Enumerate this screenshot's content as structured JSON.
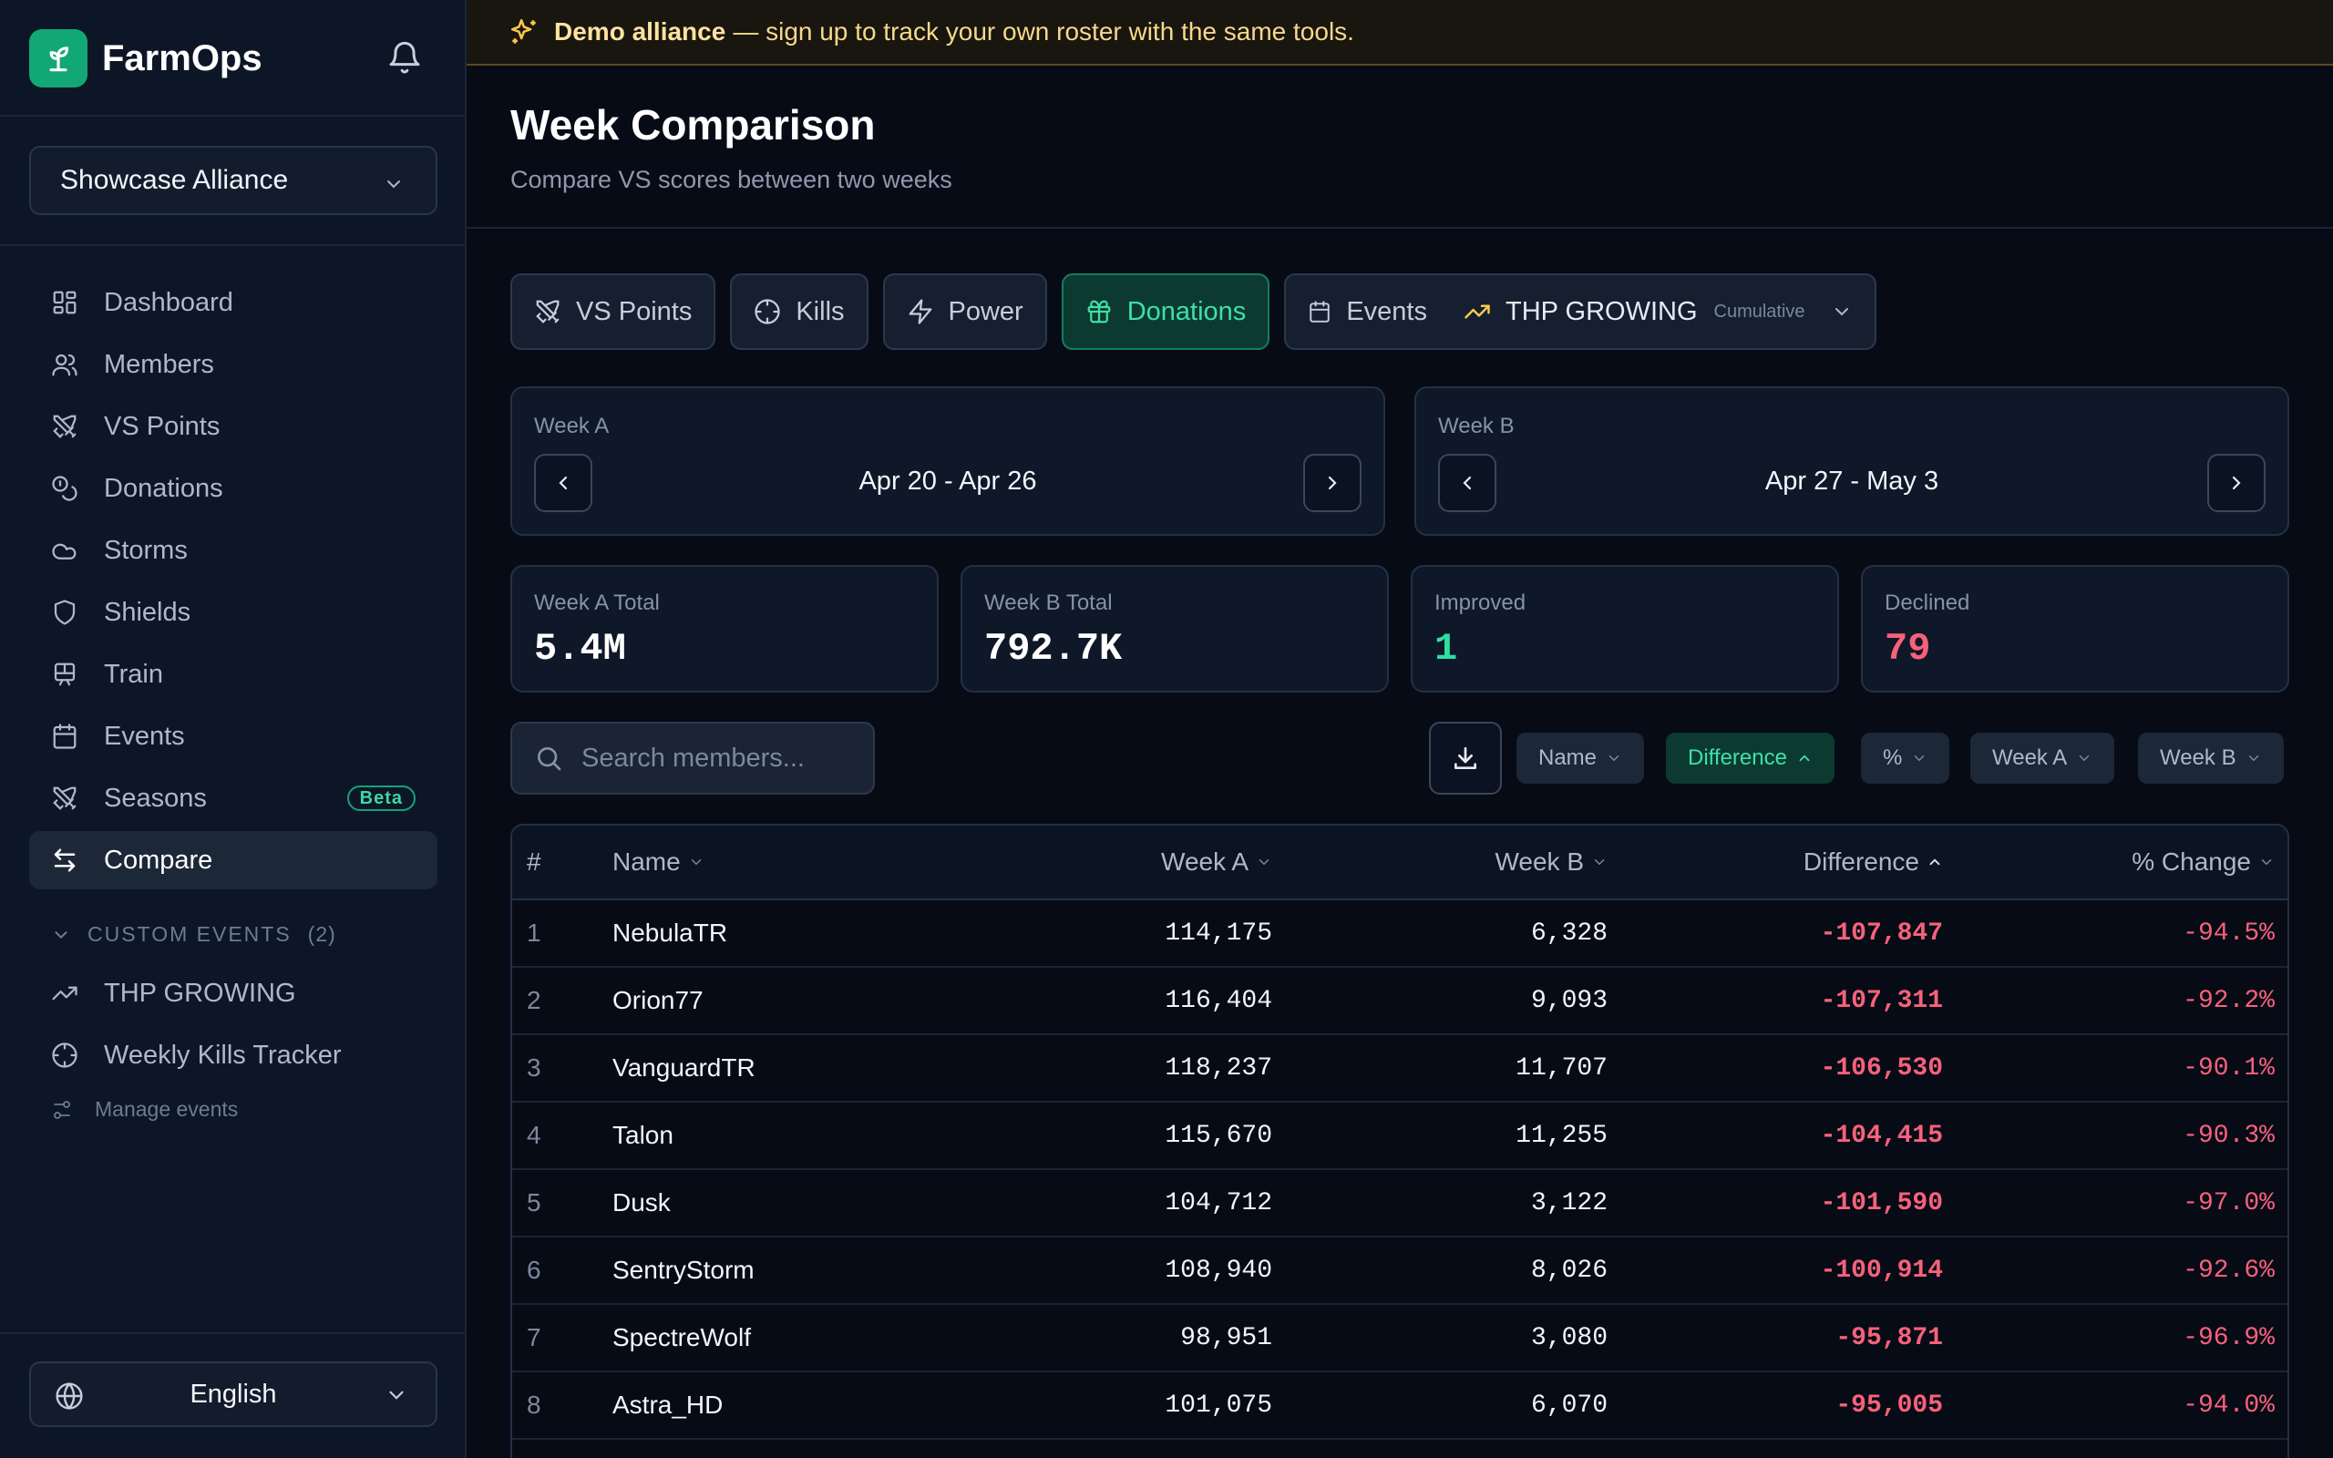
{
  "app": {
    "name": "FarmOps"
  },
  "sidebar": {
    "alliance": "Showcase Alliance",
    "nav": [
      {
        "label": "Dashboard",
        "icon": "dashboard-icon"
      },
      {
        "label": "Members",
        "icon": "members-icon"
      },
      {
        "label": "VS Points",
        "icon": "swords-icon"
      },
      {
        "label": "Donations",
        "icon": "coins-icon"
      },
      {
        "label": "Storms",
        "icon": "cloud-icon"
      },
      {
        "label": "Shields",
        "icon": "shield-icon"
      },
      {
        "label": "Train",
        "icon": "train-icon"
      },
      {
        "label": "Events",
        "icon": "calendar-icon"
      },
      {
        "label": "Seasons",
        "icon": "swords-icon",
        "badge": "Beta"
      },
      {
        "label": "Compare",
        "icon": "compare-icon",
        "active": true
      }
    ],
    "custom_events": {
      "heading": "CUSTOM EVENTS",
      "count": "(2)",
      "items": [
        {
          "label": "THP GROWING",
          "icon": "trending-up-icon"
        },
        {
          "label": "Weekly Kills Tracker",
          "icon": "crosshair-icon"
        }
      ],
      "manage": "Manage events"
    },
    "language": "English"
  },
  "banner": {
    "bold": "Demo alliance",
    "text": "— sign up to track your own roster with the same tools."
  },
  "page": {
    "title": "Week Comparison",
    "subtitle": "Compare VS scores between two weeks"
  },
  "tabs": {
    "vs_points": "VS Points",
    "kills": "Kills",
    "power": "Power",
    "donations": "Donations",
    "events": "Events",
    "event_selected": "THP GROWING",
    "event_mode": "Cumulative",
    "active": "Donations"
  },
  "weeks": {
    "a": {
      "label": "Week A",
      "range": "Apr 20 - Apr 26"
    },
    "b": {
      "label": "Week B",
      "range": "Apr 27 - May 3"
    }
  },
  "stats": [
    {
      "label": "Week A Total",
      "value": "5.4M"
    },
    {
      "label": "Week B Total",
      "value": "792.7K"
    },
    {
      "label": "Improved",
      "value": "1"
    },
    {
      "label": "Declined",
      "value": "79"
    }
  ],
  "search": {
    "placeholder": "Search members..."
  },
  "sort_pills": [
    {
      "label": "Name"
    },
    {
      "label": "Difference",
      "active": true
    },
    {
      "label": "%"
    },
    {
      "label": "Week A"
    },
    {
      "label": "Week B"
    }
  ],
  "table": {
    "headers": {
      "num": "#",
      "name": "Name",
      "week_a": "Week A",
      "week_b": "Week B",
      "difference": "Difference",
      "pct": "% Change"
    },
    "rows": [
      {
        "num": "1",
        "name": "NebulaTR",
        "week_a": "114,175",
        "week_b": "6,328",
        "difference": "-107,847",
        "pct": "-94.5%"
      },
      {
        "num": "2",
        "name": "Orion77",
        "week_a": "116,404",
        "week_b": "9,093",
        "difference": "-107,311",
        "pct": "-92.2%"
      },
      {
        "num": "3",
        "name": "VanguardTR",
        "week_a": "118,237",
        "week_b": "11,707",
        "difference": "-106,530",
        "pct": "-90.1%"
      },
      {
        "num": "4",
        "name": "Talon",
        "week_a": "115,670",
        "week_b": "11,255",
        "difference": "-104,415",
        "pct": "-90.3%"
      },
      {
        "num": "5",
        "name": "Dusk",
        "week_a": "104,712",
        "week_b": "3,122",
        "difference": "-101,590",
        "pct": "-97.0%"
      },
      {
        "num": "6",
        "name": "SentryStorm",
        "week_a": "108,940",
        "week_b": "8,026",
        "difference": "-100,914",
        "pct": "-92.6%"
      },
      {
        "num": "7",
        "name": "SpectreWolf",
        "week_a": "98,951",
        "week_b": "3,080",
        "difference": "-95,871",
        "pct": "-96.9%"
      },
      {
        "num": "8",
        "name": "Astra_HD",
        "week_a": "101,075",
        "week_b": "6,070",
        "difference": "-95,005",
        "pct": "-94.0%"
      }
    ]
  },
  "colors": {
    "accent": "#12a876",
    "negative": "#f7617b",
    "positive": "#2ee0a0",
    "banner_text": "#f6d98a"
  }
}
